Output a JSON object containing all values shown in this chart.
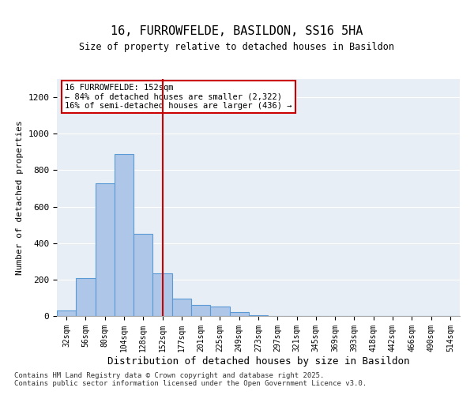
{
  "title1": "16, FURROWFELDE, BASILDON, SS16 5HA",
  "title2": "Size of property relative to detached houses in Basildon",
  "xlabel": "Distribution of detached houses by size in Basildon",
  "ylabel": "Number of detached properties",
  "bins": [
    "32sqm",
    "56sqm",
    "80sqm",
    "104sqm",
    "128sqm",
    "152sqm",
    "177sqm",
    "201sqm",
    "225sqm",
    "249sqm",
    "273sqm",
    "297sqm",
    "321sqm",
    "345sqm",
    "369sqm",
    "393sqm",
    "418sqm",
    "442sqm",
    "466sqm",
    "490sqm",
    "514sqm"
  ],
  "bar_values": [
    30,
    210,
    730,
    890,
    450,
    235,
    95,
    60,
    50,
    20,
    5,
    0,
    0,
    0,
    0,
    0,
    0,
    0,
    0,
    0,
    0
  ],
  "bar_color": "#aec6e8",
  "bar_edge_color": "#5b9bd5",
  "vline_x": 5,
  "vline_color": "#cc0000",
  "annotation_text": "16 FURROWFELDE: 152sqm\n← 84% of detached houses are smaller (2,322)\n16% of semi-detached houses are larger (436) →",
  "annotation_box_color": "#cc0000",
  "background_color": "#e8eef5",
  "footer_text": "Contains HM Land Registry data © Crown copyright and database right 2025.\nContains public sector information licensed under the Open Government Licence v3.0.",
  "ylim": [
    0,
    1300
  ],
  "yticks": [
    0,
    200,
    400,
    600,
    800,
    1000,
    1200
  ]
}
